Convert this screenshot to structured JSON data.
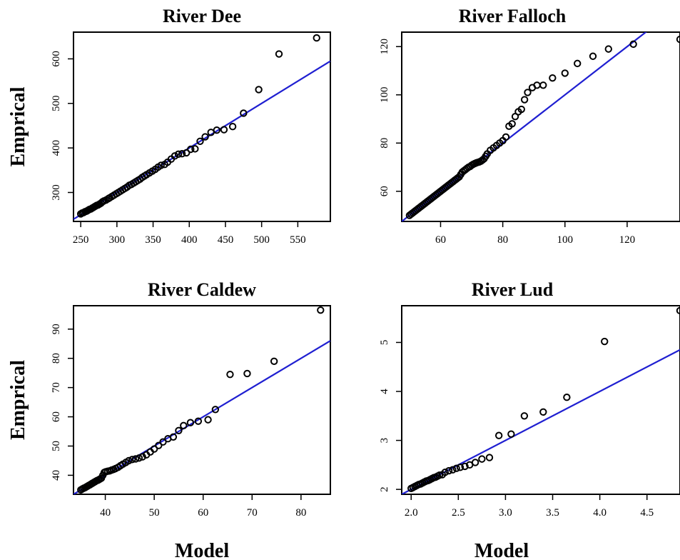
{
  "chart_data": [
    {
      "type": "scatter",
      "title": "River Dee",
      "xlabel": "",
      "ylabel": "Emprical",
      "xlim": [
        240,
        595
      ],
      "ylim": [
        235,
        660
      ],
      "xticks": [
        250,
        300,
        350,
        400,
        450,
        500,
        550
      ],
      "yticks": [
        300,
        400,
        500,
        600
      ],
      "line": [
        [
          240,
          240
        ],
        [
          595,
          595
        ]
      ],
      "line_color": "#1f1fd1",
      "points": [
        [
          250,
          252
        ],
        [
          252,
          254
        ],
        [
          254,
          255
        ],
        [
          256,
          257
        ],
        [
          258,
          258
        ],
        [
          260,
          260
        ],
        [
          262,
          262
        ],
        [
          264,
          263
        ],
        [
          266,
          265
        ],
        [
          268,
          267
        ],
        [
          270,
          269
        ],
        [
          272,
          271
        ],
        [
          274,
          272
        ],
        [
          276,
          274
        ],
        [
          278,
          276
        ],
        [
          280,
          279
        ],
        [
          282,
          281
        ],
        [
          285,
          283
        ],
        [
          288,
          286
        ],
        [
          290,
          288
        ],
        [
          293,
          291
        ],
        [
          296,
          294
        ],
        [
          299,
          297
        ],
        [
          302,
          300
        ],
        [
          305,
          303
        ],
        [
          308,
          306
        ],
        [
          311,
          309
        ],
        [
          314,
          312
        ],
        [
          317,
          316
        ],
        [
          320,
          318
        ],
        [
          323,
          321
        ],
        [
          326,
          324
        ],
        [
          329,
          327
        ],
        [
          332,
          330
        ],
        [
          335,
          334
        ],
        [
          338,
          337
        ],
        [
          341,
          340
        ],
        [
          345,
          344
        ],
        [
          349,
          348
        ],
        [
          353,
          352
        ],
        [
          357,
          357
        ],
        [
          361,
          361
        ],
        [
          366,
          363
        ],
        [
          370,
          368
        ],
        [
          375,
          375
        ],
        [
          380,
          382
        ],
        [
          385,
          386
        ],
        [
          390,
          387
        ],
        [
          396,
          389
        ],
        [
          402,
          397
        ],
        [
          408,
          398
        ],
        [
          415,
          415
        ],
        [
          422,
          425
        ],
        [
          430,
          435
        ],
        [
          438,
          440
        ],
        [
          448,
          441
        ],
        [
          460,
          448
        ],
        [
          475,
          478
        ],
        [
          496,
          531
        ],
        [
          524,
          611
        ],
        [
          576,
          647
        ]
      ]
    },
    {
      "type": "scatter",
      "title": "River Falloch",
      "xlabel": "",
      "ylabel": "",
      "xlim": [
        47.5,
        137
      ],
      "ylim": [
        47.5,
        126
      ],
      "xticks": [
        60,
        80,
        100,
        120
      ],
      "yticks": [
        60,
        80,
        100,
        120
      ],
      "line": [
        [
          47.5,
          47.5
        ],
        [
          137,
          137
        ]
      ],
      "line_color": "#1f1fd1",
      "points": [
        [
          50,
          50
        ],
        [
          50.5,
          50.5
        ],
        [
          51,
          51
        ],
        [
          51.5,
          51.5
        ],
        [
          52,
          52
        ],
        [
          52.5,
          52.5
        ],
        [
          53,
          53
        ],
        [
          53.5,
          53.5
        ],
        [
          54,
          54
        ],
        [
          54.5,
          54.5
        ],
        [
          55,
          55
        ],
        [
          55.5,
          55.5
        ],
        [
          56,
          56
        ],
        [
          56.5,
          56.5
        ],
        [
          57,
          57
        ],
        [
          57.5,
          57.5
        ],
        [
          58,
          58
        ],
        [
          58.5,
          58.5
        ],
        [
          59,
          59
        ],
        [
          59.5,
          59.5
        ],
        [
          60,
          60
        ],
        [
          60.5,
          60.5
        ],
        [
          61,
          61
        ],
        [
          61.5,
          61.5
        ],
        [
          62,
          62
        ],
        [
          62.5,
          62.5
        ],
        [
          63,
          63
        ],
        [
          63.5,
          63.5
        ],
        [
          64,
          64
        ],
        [
          64.5,
          64.5
        ],
        [
          65,
          65
        ],
        [
          65.5,
          65.5
        ],
        [
          66,
          66
        ],
        [
          66.5,
          67
        ],
        [
          67,
          68
        ],
        [
          67.5,
          68.5
        ],
        [
          68,
          69
        ],
        [
          68.5,
          69.5
        ],
        [
          69,
          70
        ],
        [
          69.5,
          70.3
        ],
        [
          70,
          70.8
        ],
        [
          70.5,
          71.2
        ],
        [
          71,
          71.5
        ],
        [
          71.5,
          71.8
        ],
        [
          72,
          72
        ],
        [
          72.5,
          72.2
        ],
        [
          73,
          72.5
        ],
        [
          73.5,
          73
        ],
        [
          74,
          73.5
        ],
        [
          74.5,
          74.5
        ],
        [
          75,
          75.5
        ],
        [
          76,
          77
        ],
        [
          77,
          78
        ],
        [
          78,
          79
        ],
        [
          79,
          80
        ],
        [
          80,
          81
        ],
        [
          81,
          82.5
        ],
        [
          82,
          87
        ],
        [
          83,
          88
        ],
        [
          84,
          91
        ],
        [
          85,
          93
        ],
        [
          86,
          94
        ],
        [
          87,
          98
        ],
        [
          88,
          101
        ],
        [
          89.5,
          103
        ],
        [
          91,
          104
        ],
        [
          93,
          104
        ],
        [
          96,
          107
        ],
        [
          100,
          109
        ],
        [
          104,
          113
        ],
        [
          109,
          116
        ],
        [
          114,
          119
        ],
        [
          122,
          121
        ],
        [
          137,
          123
        ]
      ]
    },
    {
      "type": "scatter",
      "title": "River Caldew",
      "xlabel": "Model",
      "ylabel": "Emprical",
      "xlim": [
        33.5,
        86
      ],
      "ylim": [
        33.5,
        98
      ],
      "xticks": [
        40,
        50,
        60,
        70,
        80
      ],
      "yticks": [
        40,
        50,
        60,
        70,
        80,
        90
      ],
      "line": [
        [
          33.5,
          33.5
        ],
        [
          86,
          86
        ]
      ],
      "line_color": "#1f1fd1",
      "points": [
        [
          35,
          35
        ],
        [
          35.3,
          35.3
        ],
        [
          35.6,
          35.6
        ],
        [
          35.9,
          35.8
        ],
        [
          36.2,
          36.1
        ],
        [
          36.5,
          36.4
        ],
        [
          36.8,
          36.7
        ],
        [
          37.1,
          37
        ],
        [
          37.4,
          37.3
        ],
        [
          37.7,
          37.6
        ],
        [
          38,
          37.9
        ],
        [
          38.3,
          38.2
        ],
        [
          38.6,
          38.4
        ],
        [
          38.9,
          38.7
        ],
        [
          39.2,
          39
        ],
        [
          39.5,
          40
        ],
        [
          39.8,
          41
        ],
        [
          40.1,
          41.2
        ],
        [
          40.5,
          41.4
        ],
        [
          40.9,
          41.5
        ],
        [
          41.3,
          41.8
        ],
        [
          41.7,
          42
        ],
        [
          42.1,
          42.3
        ],
        [
          42.6,
          42.7
        ],
        [
          43.1,
          43.3
        ],
        [
          43.6,
          43.8
        ],
        [
          44.2,
          44.4
        ],
        [
          44.8,
          45
        ],
        [
          45.5,
          45.4
        ],
        [
          46.2,
          45.6
        ],
        [
          46.9,
          45.9
        ],
        [
          47.6,
          46.3
        ],
        [
          48.4,
          47
        ],
        [
          49.2,
          48
        ],
        [
          50,
          49
        ],
        [
          50.9,
          50.2
        ],
        [
          51.8,
          51.4
        ],
        [
          52.8,
          52.5
        ],
        [
          53.9,
          53.1
        ],
        [
          55,
          55.3
        ],
        [
          56,
          57
        ],
        [
          57.4,
          58
        ],
        [
          59,
          58.5
        ],
        [
          61,
          59
        ],
        [
          62.5,
          62.5
        ],
        [
          65.5,
          74.5
        ],
        [
          69,
          74.8
        ],
        [
          74.5,
          79
        ],
        [
          84,
          96.5
        ]
      ]
    },
    {
      "type": "scatter",
      "title": "River Lud",
      "xlabel": "Model",
      "ylabel": "",
      "xlim": [
        1.9,
        4.85
      ],
      "ylim": [
        1.9,
        5.75
      ],
      "xticks": [
        2.0,
        2.5,
        3.0,
        3.5,
        4.0,
        4.5
      ],
      "yticks": [
        2,
        3,
        4,
        5
      ],
      "line": [
        [
          1.9,
          1.9
        ],
        [
          4.85,
          4.85
        ]
      ],
      "line_color": "#1f1fd1",
      "points": [
        [
          2.0,
          2.02
        ],
        [
          2.02,
          2.04
        ],
        [
          2.04,
          2.06
        ],
        [
          2.06,
          2.08
        ],
        [
          2.08,
          2.1
        ],
        [
          2.1,
          2.11
        ],
        [
          2.12,
          2.13
        ],
        [
          2.14,
          2.15
        ],
        [
          2.16,
          2.17
        ],
        [
          2.18,
          2.18
        ],
        [
          2.2,
          2.2
        ],
        [
          2.22,
          2.22
        ],
        [
          2.24,
          2.24
        ],
        [
          2.26,
          2.25
        ],
        [
          2.28,
          2.27
        ],
        [
          2.3,
          2.29
        ],
        [
          2.33,
          2.3
        ],
        [
          2.36,
          2.35
        ],
        [
          2.4,
          2.38
        ],
        [
          2.44,
          2.4
        ],
        [
          2.48,
          2.43
        ],
        [
          2.52,
          2.45
        ],
        [
          2.57,
          2.47
        ],
        [
          2.62,
          2.5
        ],
        [
          2.68,
          2.55
        ],
        [
          2.75,
          2.62
        ],
        [
          2.83,
          2.65
        ],
        [
          2.93,
          3.1
        ],
        [
          3.06,
          3.13
        ],
        [
          3.2,
          3.5
        ],
        [
          3.4,
          3.58
        ],
        [
          3.65,
          3.88
        ],
        [
          4.05,
          5.02
        ],
        [
          4.85,
          5.65
        ]
      ]
    }
  ]
}
